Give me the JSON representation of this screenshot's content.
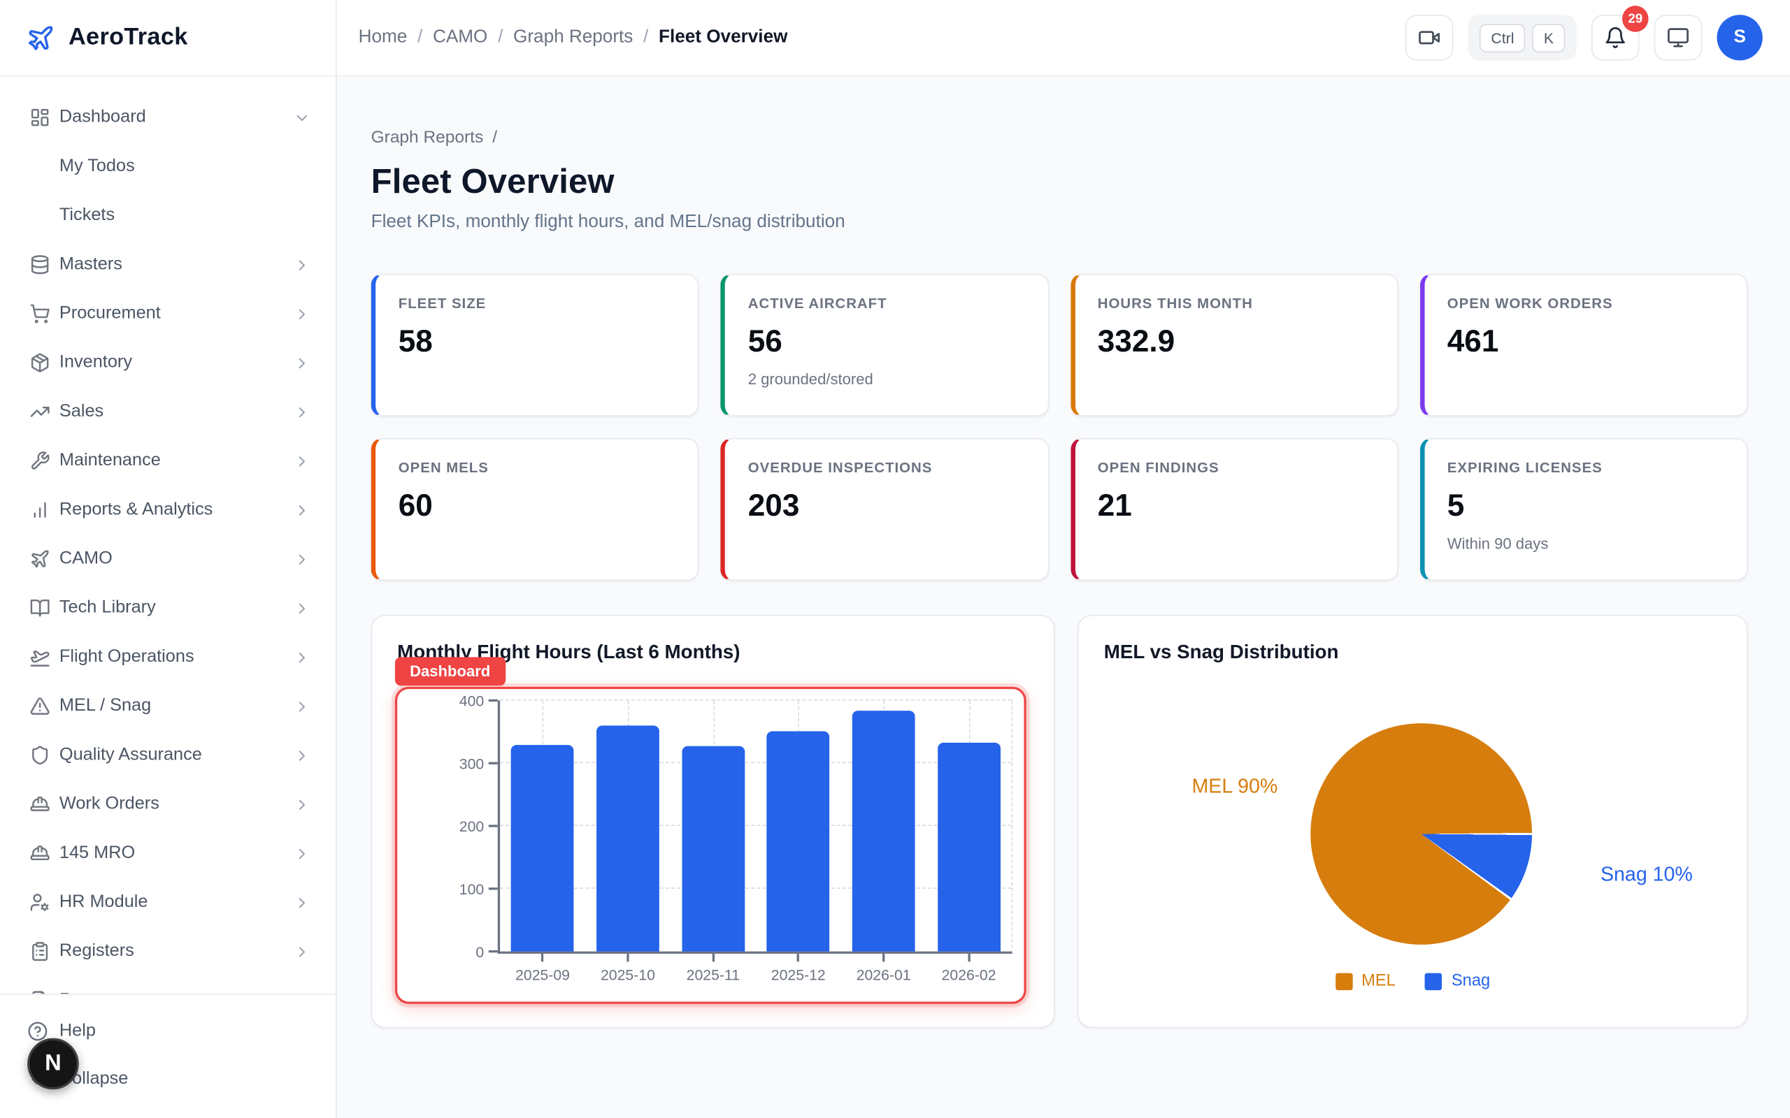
{
  "brand": {
    "name": "AeroTrack",
    "accent": "#2563eb"
  },
  "breadcrumb": {
    "items": [
      "Home",
      "CAMO",
      "Graph Reports",
      "Fleet Overview"
    ],
    "separator": "/"
  },
  "header": {
    "shortcut": {
      "key1": "Ctrl",
      "key2": "K"
    },
    "notification_count": "29",
    "avatar_initial": "S",
    "action_icons": [
      "video",
      "keyboard-shortcut",
      "bell",
      "monitor",
      "avatar"
    ]
  },
  "sidebar": {
    "items": [
      {
        "label": "Dashboard",
        "icon": "dashboard",
        "chevron": "down"
      },
      {
        "label": "My Todos",
        "icon": null,
        "child": true
      },
      {
        "label": "Tickets",
        "icon": null,
        "child": true
      },
      {
        "label": "Masters",
        "icon": "database",
        "chevron": "right"
      },
      {
        "label": "Procurement",
        "icon": "cart",
        "chevron": "right"
      },
      {
        "label": "Inventory",
        "icon": "package",
        "chevron": "right"
      },
      {
        "label": "Sales",
        "icon": "trending-up",
        "chevron": "right"
      },
      {
        "label": "Maintenance",
        "icon": "wrench",
        "chevron": "right"
      },
      {
        "label": "Reports & Analytics",
        "icon": "bar-chart",
        "chevron": "right"
      },
      {
        "label": "CAMO",
        "icon": "plane",
        "chevron": "right"
      },
      {
        "label": "Tech Library",
        "icon": "book-open",
        "chevron": "right"
      },
      {
        "label": "Flight Operations",
        "icon": "plane-takeoff",
        "chevron": "right"
      },
      {
        "label": "MEL / Snag",
        "icon": "alert-triangle",
        "chevron": "right"
      },
      {
        "label": "Quality Assurance",
        "icon": "shield",
        "chevron": "right"
      },
      {
        "label": "Work Orders",
        "icon": "hard-hat",
        "chevron": "right"
      },
      {
        "label": "145 MRO",
        "icon": "hard-hat",
        "chevron": "right"
      },
      {
        "label": "HR Module",
        "icon": "user-cog",
        "chevron": "right"
      },
      {
        "label": "Registers",
        "icon": "clipboard-list",
        "chevron": "right"
      },
      {
        "label": "Reports",
        "icon": "file",
        "chevron": "right"
      }
    ],
    "footer": [
      {
        "label": "Help",
        "icon": "help-circle"
      },
      {
        "label": "Collapse",
        "icon": "chevrons-left"
      }
    ],
    "dev_badge": "N"
  },
  "page": {
    "section_breadcrumb": "Graph Reports",
    "section_separator": "/",
    "title": "Fleet Overview",
    "subtitle": "Fleet KPIs, monthly flight hours, and MEL/snag distribution"
  },
  "kpis": [
    {
      "label": "FLEET SIZE",
      "value": "58",
      "sub": "",
      "accent": "#2563eb"
    },
    {
      "label": "ACTIVE AIRCRAFT",
      "value": "56",
      "sub": "2 grounded/stored",
      "accent": "#059669"
    },
    {
      "label": "HOURS THIS MONTH",
      "value": "332.9",
      "sub": "",
      "accent": "#d97706"
    },
    {
      "label": "OPEN WORK ORDERS",
      "value": "461",
      "sub": "",
      "accent": "#7c3aed"
    },
    {
      "label": "OPEN MELS",
      "value": "60",
      "sub": "",
      "accent": "#ea580c"
    },
    {
      "label": "OVERDUE INSPECTIONS",
      "value": "203",
      "sub": "",
      "accent": "#dc2626"
    },
    {
      "label": "OPEN FINDINGS",
      "value": "21",
      "sub": "",
      "accent": "#be123c"
    },
    {
      "label": "EXPIRING LICENSES",
      "value": "5",
      "sub": "Within 90 days",
      "accent": "#0891b2"
    }
  ],
  "annotation": {
    "badge": "Dashboard",
    "color": "#ef4444"
  },
  "chart_data": [
    {
      "type": "bar",
      "title": "Monthly Flight Hours (Last 6 Months)",
      "categories": [
        "2025-09",
        "2025-10",
        "2025-11",
        "2025-12",
        "2026-01",
        "2026-02"
      ],
      "values": [
        330,
        360,
        328,
        351,
        383,
        332
      ],
      "xlabel": "",
      "ylabel": "",
      "ylim": [
        0,
        400
      ],
      "yticks": [
        0,
        100,
        200,
        300,
        400
      ],
      "bar_color": "#2563eb",
      "grid": "dashed"
    },
    {
      "type": "pie",
      "title": "MEL vs Snag Distribution",
      "labels": [
        "MEL",
        "Snag"
      ],
      "values": [
        90,
        10
      ],
      "colors": [
        "#d67d0d",
        "#2563eb"
      ],
      "slice_labels": [
        "MEL 90%",
        "Snag 10%"
      ],
      "legend_position": "bottom"
    }
  ]
}
